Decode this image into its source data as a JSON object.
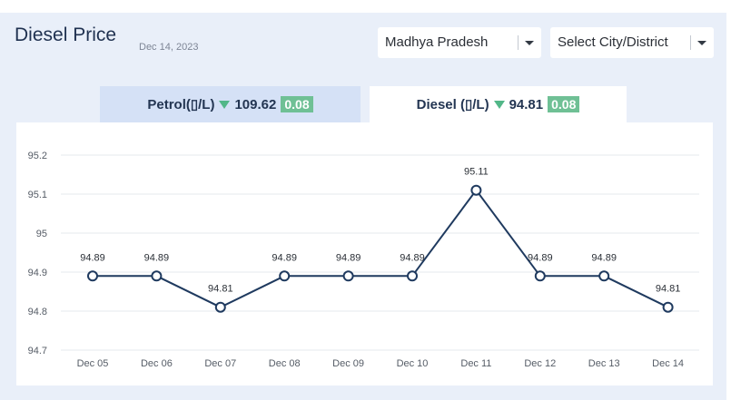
{
  "header": {
    "title": "Diesel Price",
    "date": "Dec 14, 2023"
  },
  "filters": {
    "state": "Madhya Pradesh",
    "city_placeholder": "Select City/District"
  },
  "tabs": [
    {
      "label": "Petrol(▯/L)",
      "price": "109.62",
      "change": "0.08",
      "trend": "down"
    },
    {
      "label": "Diesel (▯/L)",
      "price": "94.81",
      "change": "0.08",
      "trend": "down"
    }
  ],
  "colors": {
    "line": "#1f3a5f",
    "marker_fill": "#ffffff",
    "badge": "#6fc095",
    "trend_down": "#52b788",
    "panel_bg": "#e9eff9",
    "active_tab_bg": "#ffffff",
    "inactive_tab_bg": "#d5e1f6"
  },
  "chart_data": {
    "type": "line",
    "categories": [
      "Dec 05",
      "Dec 06",
      "Dec 07",
      "Dec 08",
      "Dec 09",
      "Dec 10",
      "Dec 11",
      "Dec 12",
      "Dec 13",
      "Dec 14"
    ],
    "values": [
      94.89,
      94.89,
      94.81,
      94.89,
      94.89,
      94.89,
      95.11,
      94.89,
      94.89,
      94.81
    ],
    "data_labels": [
      "94.89",
      "94.89",
      "94.81",
      "94.89",
      "94.89",
      "94.89",
      "95.11",
      "94.89",
      "94.89",
      "94.81"
    ],
    "yticks": [
      "94.7",
      "94.8",
      "94.9",
      "95",
      "95.1",
      "95.2"
    ],
    "ylim": [
      94.7,
      95.2
    ],
    "grid": true
  }
}
